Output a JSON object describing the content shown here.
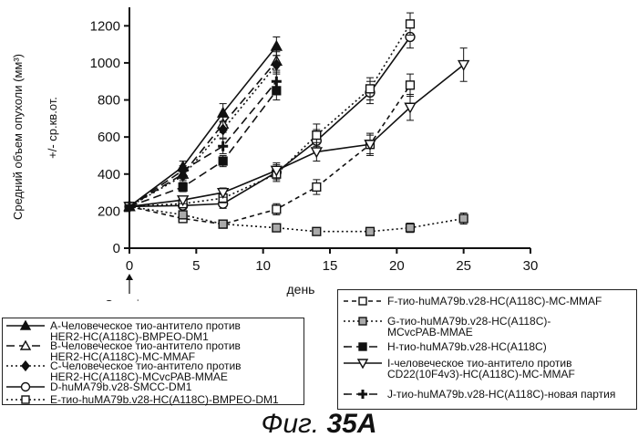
{
  "chart_data": {
    "type": "line",
    "xlabel": "день",
    "ylabel": "Средний объем опухоли (мм³)",
    "ylabel2": "+/- ср.кв.от.",
    "xlim": [
      0,
      30
    ],
    "ylim": [
      0,
      1300
    ],
    "xticks": [
      0,
      5,
      10,
      15,
      20,
      25,
      30
    ],
    "yticks": [
      0,
      200,
      400,
      600,
      800,
      1000,
      1200
    ],
    "annotation": "Одно i.v.",
    "series": [
      {
        "name": "A-Человеческое тио-антитело против HER2-HC(A118C)-BMPEO-DM1",
        "marker": "triangle-filled",
        "dash": "solid",
        "x": [
          0,
          4,
          7,
          11
        ],
        "y": [
          225,
          440,
          730,
          1090
        ],
        "err": [
          10,
          30,
          50,
          50
        ]
      },
      {
        "name": "B-Человеческое тио-антитело против HER2-HC(A118C)-MC-MMAF",
        "marker": "triangle-open",
        "dash": "long-dash",
        "x": [
          0,
          4,
          7,
          11
        ],
        "y": [
          225,
          400,
          670,
          1010
        ],
        "err": [
          10,
          25,
          45,
          50
        ]
      },
      {
        "name": "C-Человеческое тио-антитело против HER2-HC(A118C)-MCvcPAB-MMAE",
        "marker": "diamond-filled",
        "dash": "dotted",
        "x": [
          0,
          4,
          7,
          11
        ],
        "y": [
          225,
          390,
          640,
          990
        ],
        "err": [
          10,
          25,
          45,
          50
        ]
      },
      {
        "name": "D-huMA79b.v28-SMCC-DM1",
        "marker": "circle-open",
        "dash": "solid",
        "x": [
          0,
          4,
          7,
          11,
          14,
          18,
          21
        ],
        "y": [
          225,
          230,
          240,
          410,
          580,
          840,
          1140
        ],
        "err": [
          10,
          20,
          25,
          40,
          60,
          60,
          60
        ]
      },
      {
        "name": "E-тио-huMA79b.v28-HC(A118C)-BMPEO-DM1",
        "marker": "square-open",
        "dash": "dotted",
        "x": [
          0,
          4,
          7,
          11,
          14,
          18,
          21
        ],
        "y": [
          225,
          240,
          270,
          400,
          610,
          860,
          1210
        ],
        "err": [
          10,
          20,
          25,
          40,
          60,
          60,
          60
        ]
      },
      {
        "name": "F-тио-huMA79b.v28-HC(A118C)-MC-MMAF",
        "marker": "square-open",
        "dash": "short-dash",
        "x": [
          0,
          4,
          7,
          11,
          14,
          18,
          21
        ],
        "y": [
          225,
          160,
          130,
          210,
          330,
          560,
          880
        ],
        "err": [
          10,
          20,
          20,
          30,
          40,
          50,
          60
        ]
      },
      {
        "name": "G-тио-huMA79b.v28-HC(A118C)-MCvcPAB-MMAE",
        "marker": "square-shaded",
        "dash": "dotted",
        "x": [
          0,
          4,
          7,
          11,
          14,
          18,
          21,
          25
        ],
        "y": [
          225,
          180,
          130,
          110,
          90,
          90,
          110,
          160
        ],
        "err": [
          10,
          15,
          15,
          15,
          15,
          15,
          25,
          30
        ]
      },
      {
        "name": "H-тио-huMA79b.v28-HC(A118C)",
        "marker": "square-filled",
        "dash": "long-dash",
        "x": [
          0,
          4,
          7,
          11
        ],
        "y": [
          225,
          330,
          470,
          850
        ],
        "err": [
          10,
          25,
          30,
          50
        ]
      },
      {
        "name": "I-человеческое тио-антитело против CD22(10F4v3)-HC(A118C)-MC-MMAF",
        "marker": "triangle-down-open",
        "dash": "solid",
        "x": [
          0,
          4,
          7,
          11,
          14,
          18,
          21,
          25
        ],
        "y": [
          225,
          260,
          300,
          420,
          520,
          560,
          760,
          990
        ],
        "err": [
          10,
          20,
          25,
          40,
          50,
          60,
          70,
          90
        ]
      },
      {
        "name": "J-тио-huMA79b.v28-HC(A118C)-новая партия",
        "marker": "plus",
        "dash": "long-dash",
        "x": [
          0,
          4,
          7,
          11
        ],
        "y": [
          225,
          420,
          550,
          900
        ],
        "err": [
          10,
          25,
          40,
          50
        ]
      }
    ]
  },
  "legend": {
    "left": [
      "A-Человеческое тио-антитело против\nHER2-HC(A118C)-BMPEO-DM1",
      "B-Человеческое тио-антитело против\nHER2-HC(A118C)-MC-MMAF",
      "C-Человеческое тио-антитело против\nHER2-HC(A118C)-MCvcPAB-MMAE",
      "D-huMA79b.v28-SMCC-DM1",
      "E-тио-huMA79b.v28-HC(A118C)-BMPEO-DM1"
    ],
    "right": [
      "F-тио-huMA79b.v28-HC(A118C)-MC-MMAF",
      "G-тио-huMA79b.v28-HC(A118C)-\nMCvcPAB-MMAE",
      "H-тио-huMA79b.v28-HC(A118C)",
      "I-человеческое тио-антитело против\nCD22(10F4v3)-HC(A118C)-MC-MMAF",
      "J-тио-huMA79b.v28-HC(A118C)-новая партия"
    ]
  },
  "figure": {
    "caption_prefix": "Фиг. ",
    "caption_number": "35A"
  }
}
